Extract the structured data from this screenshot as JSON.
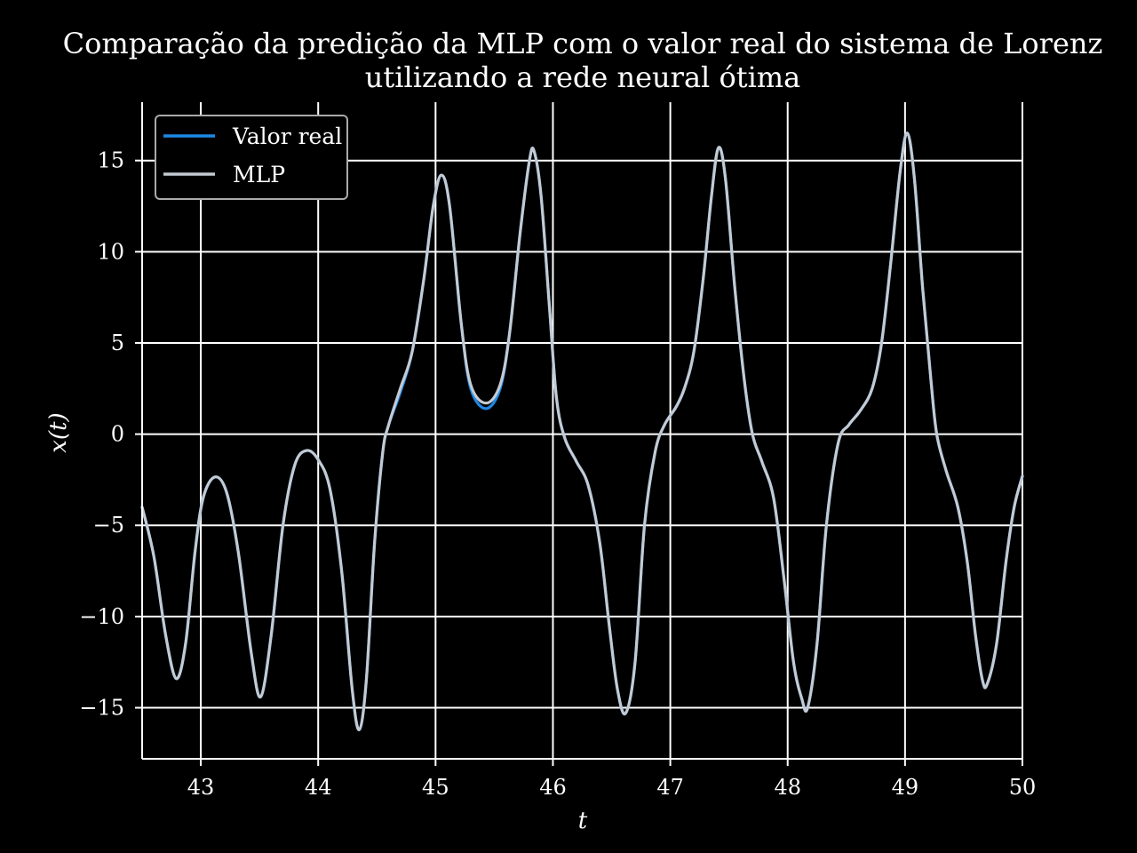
{
  "chart_data": {
    "type": "line",
    "title_lines": [
      "Comparação da predição da MLP com o valor real do sistema de Lorenz",
      "utilizando a rede neural ótima"
    ],
    "xlabel": "t",
    "ylabel": "x(t)",
    "xlim": [
      42.5,
      50
    ],
    "ylim": [
      -17.8,
      18.2
    ],
    "xticks": [
      43,
      44,
      45,
      46,
      47,
      48,
      49,
      50
    ],
    "yticks": [
      -15,
      -10,
      -5,
      0,
      5,
      10,
      15
    ],
    "xtick_labels": [
      "43",
      "44",
      "45",
      "46",
      "47",
      "48",
      "49",
      "50"
    ],
    "ytick_labels": [
      "−15",
      "−10",
      "−5",
      "0",
      "5",
      "10",
      "15"
    ],
    "grid": true,
    "legend_position": "top-left",
    "series": [
      {
        "name": "Valor real",
        "color": "#1e88e5",
        "points": [
          [
            42.5,
            -4.0
          ],
          [
            42.6,
            -6.7
          ],
          [
            42.7,
            -11.0
          ],
          [
            42.79,
            -13.4
          ],
          [
            42.87,
            -11.5
          ],
          [
            42.95,
            -6.5
          ],
          [
            43.02,
            -3.5
          ],
          [
            43.12,
            -2.35
          ],
          [
            43.22,
            -3.2
          ],
          [
            43.32,
            -6.5
          ],
          [
            43.43,
            -12.0
          ],
          [
            43.51,
            -14.4
          ],
          [
            43.6,
            -11.0
          ],
          [
            43.7,
            -5.0
          ],
          [
            43.8,
            -1.7
          ],
          [
            43.9,
            -0.9
          ],
          [
            44.0,
            -1.4
          ],
          [
            44.1,
            -3.0
          ],
          [
            44.2,
            -7.5
          ],
          [
            44.29,
            -14.0
          ],
          [
            44.35,
            -16.2
          ],
          [
            44.41,
            -13.5
          ],
          [
            44.48,
            -6.0
          ],
          [
            44.55,
            -1.0
          ],
          [
            44.6,
            0.5
          ],
          [
            44.7,
            2.3
          ],
          [
            44.8,
            4.5
          ],
          [
            44.9,
            8.5
          ],
          [
            44.98,
            12.5
          ],
          [
            45.05,
            14.2
          ],
          [
            45.12,
            12.5
          ],
          [
            45.22,
            6.0
          ],
          [
            45.3,
            2.5
          ],
          [
            45.43,
            1.4
          ],
          [
            45.55,
            2.5
          ],
          [
            45.63,
            5.5
          ],
          [
            45.72,
            11.0
          ],
          [
            45.8,
            15.0
          ],
          [
            45.84,
            15.5
          ],
          [
            45.9,
            13.0
          ],
          [
            45.97,
            7.0
          ],
          [
            46.03,
            2.0
          ],
          [
            46.1,
            -0.2
          ],
          [
            46.2,
            -1.5
          ],
          [
            46.3,
            -2.8
          ],
          [
            46.4,
            -6.0
          ],
          [
            46.48,
            -10.5
          ],
          [
            46.55,
            -14.0
          ],
          [
            46.62,
            -15.3
          ],
          [
            46.7,
            -12.5
          ],
          [
            46.78,
            -5.0
          ],
          [
            46.87,
            -1.0
          ],
          [
            46.95,
            0.5
          ],
          [
            47.05,
            1.5
          ],
          [
            47.12,
            2.5
          ],
          [
            47.2,
            4.5
          ],
          [
            47.28,
            8.5
          ],
          [
            47.35,
            13.0
          ],
          [
            47.41,
            15.7
          ],
          [
            47.47,
            14.0
          ],
          [
            47.55,
            8.0
          ],
          [
            47.63,
            3.0
          ],
          [
            47.7,
            0.0
          ],
          [
            47.78,
            -1.5
          ],
          [
            47.88,
            -3.5
          ],
          [
            47.97,
            -8.0
          ],
          [
            48.05,
            -12.5
          ],
          [
            48.12,
            -14.5
          ],
          [
            48.17,
            -15.0
          ],
          [
            48.25,
            -11.5
          ],
          [
            48.33,
            -5.0
          ],
          [
            48.43,
            -0.5
          ],
          [
            48.52,
            0.5
          ],
          [
            48.62,
            1.3
          ],
          [
            48.72,
            2.5
          ],
          [
            48.8,
            5.0
          ],
          [
            48.88,
            9.5
          ],
          [
            48.96,
            14.5
          ],
          [
            49.02,
            16.5
          ],
          [
            49.08,
            14.0
          ],
          [
            49.15,
            8.0
          ],
          [
            49.22,
            3.0
          ],
          [
            49.27,
            0.0
          ],
          [
            49.35,
            -2.0
          ],
          [
            49.45,
            -4.0
          ],
          [
            49.53,
            -7.0
          ],
          [
            49.6,
            -11.0
          ],
          [
            49.66,
            -13.5
          ],
          [
            49.7,
            -13.7
          ],
          [
            49.78,
            -11.5
          ],
          [
            49.86,
            -7.0
          ],
          [
            49.93,
            -4.0
          ],
          [
            50.0,
            -2.3
          ]
        ]
      },
      {
        "name": "MLP",
        "color": "#c3cad3",
        "points": [
          [
            42.5,
            -4.0
          ],
          [
            42.6,
            -6.7
          ],
          [
            42.7,
            -11.0
          ],
          [
            42.79,
            -13.4
          ],
          [
            42.87,
            -11.5
          ],
          [
            42.95,
            -6.5
          ],
          [
            43.02,
            -3.5
          ],
          [
            43.12,
            -2.35
          ],
          [
            43.22,
            -3.2
          ],
          [
            43.32,
            -6.5
          ],
          [
            43.43,
            -12.0
          ],
          [
            43.51,
            -14.4
          ],
          [
            43.6,
            -11.0
          ],
          [
            43.7,
            -5.0
          ],
          [
            43.8,
            -1.7
          ],
          [
            43.9,
            -0.9
          ],
          [
            44.0,
            -1.4
          ],
          [
            44.1,
            -3.0
          ],
          [
            44.2,
            -7.5
          ],
          [
            44.29,
            -14.0
          ],
          [
            44.35,
            -16.2
          ],
          [
            44.41,
            -13.5
          ],
          [
            44.48,
            -6.0
          ],
          [
            44.55,
            -1.0
          ],
          [
            44.6,
            0.5
          ],
          [
            44.7,
            2.5
          ],
          [
            44.8,
            4.5
          ],
          [
            44.9,
            8.5
          ],
          [
            44.98,
            12.5
          ],
          [
            45.05,
            14.2
          ],
          [
            45.12,
            12.5
          ],
          [
            45.22,
            6.0
          ],
          [
            45.3,
            2.7
          ],
          [
            45.43,
            1.7
          ],
          [
            45.55,
            2.7
          ],
          [
            45.63,
            5.5
          ],
          [
            45.72,
            11.0
          ],
          [
            45.8,
            15.0
          ],
          [
            45.84,
            15.5
          ],
          [
            45.9,
            13.0
          ],
          [
            45.97,
            7.0
          ],
          [
            46.03,
            2.0
          ],
          [
            46.1,
            -0.2
          ],
          [
            46.2,
            -1.5
          ],
          [
            46.3,
            -2.8
          ],
          [
            46.4,
            -6.0
          ],
          [
            46.48,
            -10.5
          ],
          [
            46.55,
            -14.0
          ],
          [
            46.62,
            -15.3
          ],
          [
            46.7,
            -12.5
          ],
          [
            46.78,
            -5.0
          ],
          [
            46.87,
            -1.0
          ],
          [
            46.95,
            0.5
          ],
          [
            47.05,
            1.5
          ],
          [
            47.12,
            2.5
          ],
          [
            47.2,
            4.5
          ],
          [
            47.28,
            8.5
          ],
          [
            47.35,
            13.0
          ],
          [
            47.41,
            15.7
          ],
          [
            47.47,
            14.0
          ],
          [
            47.55,
            8.0
          ],
          [
            47.63,
            3.0
          ],
          [
            47.7,
            0.0
          ],
          [
            47.78,
            -1.5
          ],
          [
            47.88,
            -3.5
          ],
          [
            47.97,
            -8.0
          ],
          [
            48.05,
            -12.5
          ],
          [
            48.12,
            -14.5
          ],
          [
            48.17,
            -15.0
          ],
          [
            48.25,
            -11.5
          ],
          [
            48.33,
            -5.0
          ],
          [
            48.43,
            -0.5
          ],
          [
            48.52,
            0.5
          ],
          [
            48.62,
            1.3
          ],
          [
            48.72,
            2.5
          ],
          [
            48.8,
            5.0
          ],
          [
            48.88,
            9.5
          ],
          [
            48.96,
            14.5
          ],
          [
            49.02,
            16.5
          ],
          [
            49.08,
            14.0
          ],
          [
            49.15,
            8.0
          ],
          [
            49.22,
            3.0
          ],
          [
            49.27,
            0.0
          ],
          [
            49.35,
            -2.0
          ],
          [
            49.45,
            -4.0
          ],
          [
            49.53,
            -7.0
          ],
          [
            49.6,
            -11.0
          ],
          [
            49.66,
            -13.5
          ],
          [
            49.7,
            -13.7
          ],
          [
            49.78,
            -11.5
          ],
          [
            49.86,
            -7.0
          ],
          [
            49.93,
            -4.0
          ],
          [
            50.0,
            -2.3
          ]
        ]
      }
    ]
  }
}
